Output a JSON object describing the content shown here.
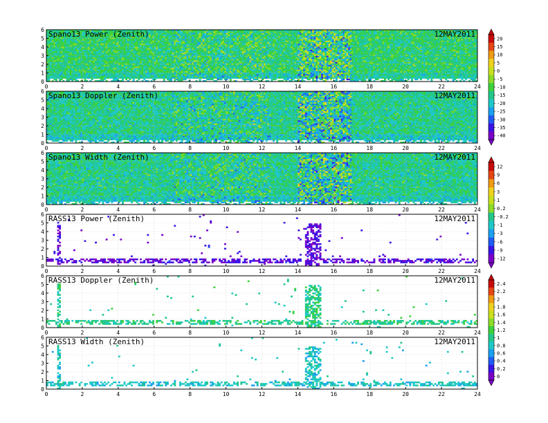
{
  "figure": {
    "date": "12MAY2011"
  },
  "chart_data": [
    {
      "type": "heatmap",
      "title": "Spano13 Power (Zenith)",
      "xlabel": "",
      "ylabel": "",
      "xlim": [
        0,
        24
      ],
      "ylim": [
        0,
        6
      ],
      "x_ticks": [
        "0",
        "2",
        "4",
        "6",
        "8",
        "10",
        "12",
        "14",
        "16",
        "18",
        "20",
        "22",
        "24"
      ],
      "y_ticks": [
        "0",
        "1",
        "2",
        "3",
        "4",
        "5",
        "6"
      ],
      "style": "dense",
      "base_level": 0.45,
      "colorbar_group": 0
    },
    {
      "type": "heatmap",
      "title": "Spano13 Doppler (Zenith)",
      "xlabel": "",
      "ylabel": "",
      "xlim": [
        0,
        24
      ],
      "ylim": [
        0,
        6
      ],
      "x_ticks": [
        "0",
        "2",
        "4",
        "6",
        "8",
        "10",
        "12",
        "14",
        "16",
        "18",
        "20",
        "22",
        "24"
      ],
      "y_ticks": [
        "0",
        "1",
        "2",
        "3",
        "4",
        "5",
        "6"
      ],
      "style": "dense",
      "base_level": 0.42,
      "colorbar_group": 0
    },
    {
      "type": "heatmap",
      "title": "Spano13 Width (Zenith)",
      "xlabel": "",
      "ylabel": "",
      "xlim": [
        0,
        24
      ],
      "ylim": [
        0,
        6
      ],
      "x_ticks": [
        "0",
        "2",
        "4",
        "6",
        "8",
        "10",
        "12",
        "14",
        "16",
        "18",
        "20",
        "22",
        "24"
      ],
      "y_ticks": [
        "0",
        "1",
        "2",
        "3",
        "4",
        "5",
        "6"
      ],
      "style": "dense",
      "base_level": 0.42,
      "colorbar_group": 1
    },
    {
      "type": "heatmap",
      "title": "RASS13 Power (Zenith)",
      "xlabel": "",
      "ylabel": "",
      "xlim": [
        0,
        24
      ],
      "ylim": [
        0,
        6
      ],
      "x_ticks": [
        "0",
        "2",
        "4",
        "6",
        "8",
        "10",
        "12",
        "14",
        "16",
        "18",
        "20",
        "22",
        "24"
      ],
      "y_ticks": [
        "0",
        "1",
        "2",
        "3",
        "4",
        "5",
        "6"
      ],
      "style": "sparse",
      "base_level": 0.08,
      "colorbar_group": 1
    },
    {
      "type": "heatmap",
      "title": "RASS13 Doppler (Zenith)",
      "xlabel": "",
      "ylabel": "",
      "xlim": [
        0,
        24
      ],
      "ylim": [
        0,
        6
      ],
      "x_ticks": [
        "0",
        "2",
        "4",
        "6",
        "8",
        "10",
        "12",
        "14",
        "16",
        "18",
        "20",
        "22",
        "24"
      ],
      "y_ticks": [
        "0",
        "1",
        "2",
        "3",
        "4",
        "5",
        "6"
      ],
      "style": "sparse",
      "base_level": 0.42,
      "colorbar_group": 2
    },
    {
      "type": "heatmap",
      "title": "RASS13 Width (Zenith)",
      "xlabel": "",
      "ylabel": "",
      "xlim": [
        0,
        24
      ],
      "ylim": [
        0,
        6
      ],
      "x_ticks": [
        "0",
        "2",
        "4",
        "6",
        "8",
        "10",
        "12",
        "14",
        "16",
        "18",
        "20",
        "22",
        "24"
      ],
      "y_ticks": [
        "0",
        "1",
        "2",
        "3",
        "4",
        "5",
        "6"
      ],
      "style": "sparse",
      "base_level": 0.35,
      "colorbar_group": 2
    }
  ],
  "colorbars": [
    {
      "labels": [
        "20",
        "15",
        "10",
        "5",
        "0",
        "-5",
        "-10",
        "-15",
        "-20",
        "-25",
        "-30",
        "-35",
        "-40"
      ]
    },
    {
      "labels": [
        "12",
        "9",
        "6",
        "3",
        "1",
        "0.2",
        "-0.2",
        "-1",
        "-3",
        "-6",
        "-9",
        "-12"
      ]
    },
    {
      "labels": [
        "2.4",
        "2.2",
        "2",
        "1.8",
        "1.6",
        "1.4",
        "1.2",
        "1",
        "0.8",
        "0.6",
        "0.4",
        "0.2",
        "0"
      ]
    }
  ],
  "palette": [
    "#7a00c8",
    "#3a14e6",
    "#1f5cf5",
    "#1aa0f0",
    "#1fc8c8",
    "#22c88a",
    "#3cd23c",
    "#8cdc28",
    "#c8e01e",
    "#f0d21e",
    "#f09a14",
    "#e64614",
    "#c80a0a"
  ]
}
